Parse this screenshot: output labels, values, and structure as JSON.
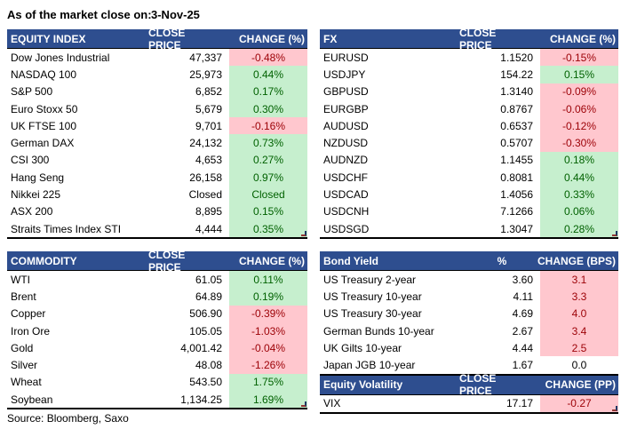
{
  "title": {
    "label": "As of the market close on:",
    "date": "3-Nov-25"
  },
  "source": "Source: Bloomberg, Saxo",
  "colors": {
    "header_bg": "#2E4E8F",
    "header_text": "#FFFFFF",
    "positive_fill": "#C6EFCE",
    "positive_text": "#006100",
    "negative_fill": "#FFC7CE",
    "negative_text": "#9C0006"
  },
  "chart_data": [
    {
      "type": "table",
      "id": "equity",
      "headers": [
        "EQUITY INDEX",
        "CLOSE PRICE",
        "CHANGE (%)"
      ],
      "price_header_align": "right",
      "corner_mark": true,
      "rows": [
        {
          "name": "Dow Jones Industrial",
          "close": "47,337",
          "change": "-0.48%",
          "fill": "red"
        },
        {
          "name": "NASDAQ 100",
          "close": "25,973",
          "change": "0.44%",
          "fill": "green"
        },
        {
          "name": "S&P 500",
          "close": "6,852",
          "change": "0.17%",
          "fill": "green"
        },
        {
          "name": "Euro Stoxx 50",
          "close": "5,679",
          "change": "0.30%",
          "fill": "green"
        },
        {
          "name": "UK FTSE 100",
          "close": "9,701",
          "change": "-0.16%",
          "fill": "red"
        },
        {
          "name": "German DAX",
          "close": "24,132",
          "change": "0.73%",
          "fill": "green"
        },
        {
          "name": "CSI 300",
          "close": "4,653",
          "change": "0.27%",
          "fill": "green"
        },
        {
          "name": "Hang Seng",
          "close": "26,158",
          "change": "0.97%",
          "fill": "green"
        },
        {
          "name": "Nikkei 225",
          "close": "Closed",
          "change": "Closed",
          "fill": "green"
        },
        {
          "name": "ASX 200",
          "close": "8,895",
          "change": "0.15%",
          "fill": "green"
        },
        {
          "name": "Straits Times Index STI",
          "close": "4,444",
          "change": "0.35%",
          "fill": "green"
        }
      ]
    },
    {
      "type": "table",
      "id": "fx",
      "headers": [
        "FX",
        "CLOSE PRICE",
        "CHANGE (%)"
      ],
      "price_header_align": "right",
      "corner_mark": true,
      "rows": [
        {
          "name": "EURUSD",
          "close": "1.1520",
          "change": "-0.15%",
          "fill": "red"
        },
        {
          "name": "USDJPY",
          "close": "154.22",
          "change": "0.15%",
          "fill": "green"
        },
        {
          "name": "GBPUSD",
          "close": "1.3140",
          "change": "-0.09%",
          "fill": "red"
        },
        {
          "name": "EURGBP",
          "close": "0.8767",
          "change": "-0.06%",
          "fill": "red"
        },
        {
          "name": "AUDUSD",
          "close": "0.6537",
          "change": "-0.12%",
          "fill": "red"
        },
        {
          "name": "NZDUSD",
          "close": "0.5707",
          "change": "-0.30%",
          "fill": "red"
        },
        {
          "name": "AUDNZD",
          "close": "1.1455",
          "change": "0.18%",
          "fill": "green"
        },
        {
          "name": "USDCHF",
          "close": "0.8081",
          "change": "0.44%",
          "fill": "green"
        },
        {
          "name": "USDCAD",
          "close": "1.4056",
          "change": "0.33%",
          "fill": "green"
        },
        {
          "name": "USDCNH",
          "close": "7.1266",
          "change": "0.06%",
          "fill": "green"
        },
        {
          "name": "USDSGD",
          "close": "1.3047",
          "change": "0.28%",
          "fill": "green"
        }
      ]
    },
    {
      "type": "table",
      "id": "commodity",
      "headers": [
        "COMMODITY",
        "CLOSE PRICE",
        "CHANGE (%)"
      ],
      "price_header_align": "right",
      "corner_mark": true,
      "rows": [
        {
          "name": "WTI",
          "close": "61.05",
          "change": "0.11%",
          "fill": "green"
        },
        {
          "name": "Brent",
          "close": "64.89",
          "change": "0.19%",
          "fill": "green"
        },
        {
          "name": "Copper",
          "close": "506.90",
          "change": "-0.39%",
          "fill": "red"
        },
        {
          "name": "Iron Ore",
          "close": "105.05",
          "change": "-1.03%",
          "fill": "red"
        },
        {
          "name": "Gold",
          "close": "4,001.42",
          "change": "-0.04%",
          "fill": "red"
        },
        {
          "name": "Silver",
          "close": "48.08",
          "change": "-1.26%",
          "fill": "red"
        },
        {
          "name": "Wheat",
          "close": "543.50",
          "change": "1.75%",
          "fill": "green"
        },
        {
          "name": "Soybean",
          "close": "1,134.25",
          "change": "1.69%",
          "fill": "green"
        }
      ]
    },
    {
      "type": "table",
      "id": "bond",
      "headers": [
        "Bond Yield",
        "%",
        "CHANGE (BPS)"
      ],
      "price_header_align": "center",
      "corner_mark": false,
      "rows": [
        {
          "name": "US Treasury 2-year",
          "close": "3.60",
          "change": "3.1",
          "fill": "red"
        },
        {
          "name": "US Treasury 10-year",
          "close": "4.11",
          "change": "3.3",
          "fill": "red"
        },
        {
          "name": "US Treasury 30-year",
          "close": "4.69",
          "change": "4.0",
          "fill": "red"
        },
        {
          "name": "German Bunds 10-year",
          "close": "2.67",
          "change": "3.4",
          "fill": "red"
        },
        {
          "name": "UK Gilts 10-year",
          "close": "4.44",
          "change": "2.5",
          "fill": "red"
        },
        {
          "name": "Japan JGB 10-year",
          "close": "1.67",
          "change": "0.0",
          "fill": "none"
        }
      ]
    },
    {
      "type": "table",
      "id": "volatility",
      "headers": [
        "Equity Volatility",
        "CLOSE PRICE",
        "CHANGE (PP)"
      ],
      "price_header_align": "right",
      "corner_mark": true,
      "rows": [
        {
          "name": "VIX",
          "close": "17.17",
          "change": "-0.27",
          "fill": "red"
        }
      ]
    }
  ]
}
